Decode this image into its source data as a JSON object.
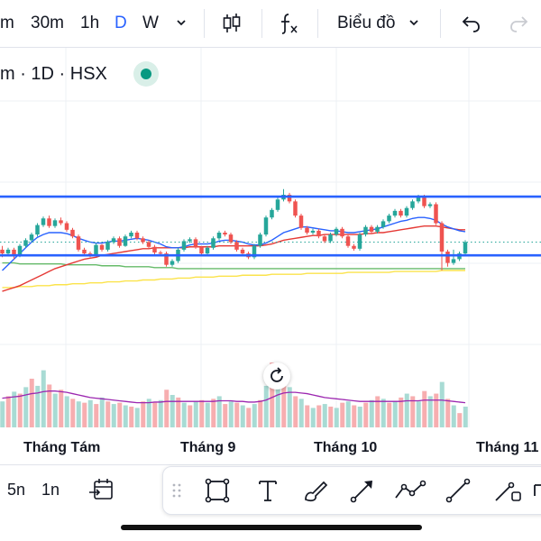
{
  "toolbar": {
    "timeframes": [
      {
        "label": "m",
        "active": false
      },
      {
        "label": "30m",
        "active": false
      },
      {
        "label": "1h",
        "active": false
      },
      {
        "label": "D",
        "active": true
      },
      {
        "label": "W",
        "active": false
      }
    ],
    "chart_type_label": "Biểu đồ"
  },
  "symbol": {
    "title": "m · 1D · HSX"
  },
  "chart_data": {
    "type": "candlestick",
    "xlabels": [
      "Tháng Tám",
      "Tháng 9",
      "Tháng 10",
      "Tháng 11"
    ],
    "colors": {
      "up": "#26a69a",
      "down": "#ef5350",
      "up_vol": "#a8dbd4",
      "down_vol": "#f7aeb0",
      "resistance": "#2962ff",
      "ma_blue": "#2962ff",
      "ma_red": "#e53935",
      "ma_green": "#66bb6a",
      "ma_yellow": "#fbe34b",
      "vol_ma": "#9c27b0",
      "last_price": "#26a69a"
    },
    "candles": [
      [
        62,
        58,
        66,
        54
      ],
      [
        58,
        62,
        64,
        56
      ],
      [
        62,
        56,
        64,
        52
      ],
      [
        56,
        66,
        68,
        54
      ],
      [
        66,
        72,
        74,
        64
      ],
      [
        72,
        78,
        80,
        70
      ],
      [
        78,
        88,
        90,
        76
      ],
      [
        88,
        95,
        97,
        86
      ],
      [
        95,
        87,
        98,
        85
      ],
      [
        87,
        93,
        95,
        85
      ],
      [
        93,
        90,
        96,
        88
      ],
      [
        90,
        83,
        92,
        81
      ],
      [
        83,
        76,
        85,
        74
      ],
      [
        76,
        62,
        78,
        60
      ],
      [
        62,
        58,
        64,
        56
      ],
      [
        58,
        56,
        60,
        54
      ],
      [
        56,
        67,
        69,
        55
      ],
      [
        67,
        62,
        68,
        60
      ],
      [
        62,
        70,
        72,
        60
      ],
      [
        70,
        74,
        76,
        68
      ],
      [
        74,
        66,
        76,
        64
      ],
      [
        66,
        76,
        78,
        65
      ],
      [
        76,
        80,
        82,
        74
      ],
      [
        80,
        74,
        82,
        72
      ],
      [
        74,
        70,
        76,
        68
      ],
      [
        70,
        65,
        72,
        63
      ],
      [
        65,
        59,
        67,
        57
      ],
      [
        59,
        58,
        61,
        56
      ],
      [
        58,
        46,
        60,
        44
      ],
      [
        46,
        50,
        52,
        44
      ],
      [
        50,
        62,
        64,
        48
      ],
      [
        62,
        71,
        73,
        60
      ],
      [
        71,
        73,
        75,
        69
      ],
      [
        73,
        65,
        75,
        63
      ],
      [
        65,
        58,
        66,
        56
      ],
      [
        58,
        64,
        66,
        56
      ],
      [
        64,
        74,
        76,
        62
      ],
      [
        74,
        80,
        82,
        72
      ],
      [
        80,
        78,
        82,
        76
      ],
      [
        78,
        70,
        80,
        68
      ],
      [
        70,
        62,
        72,
        60
      ],
      [
        62,
        58,
        64,
        56
      ],
      [
        58,
        54,
        60,
        52
      ],
      [
        54,
        66,
        68,
        52
      ],
      [
        66,
        78,
        80,
        64
      ],
      [
        78,
        96,
        98,
        76
      ],
      [
        96,
        104,
        106,
        94
      ],
      [
        104,
        115,
        118,
        102
      ],
      [
        115,
        120,
        126,
        113
      ],
      [
        120,
        113,
        122,
        111
      ],
      [
        113,
        98,
        115,
        96
      ],
      [
        98,
        85,
        100,
        83
      ],
      [
        85,
        80,
        87,
        78
      ],
      [
        80,
        82,
        84,
        78
      ],
      [
        82,
        76,
        84,
        74
      ],
      [
        76,
        71,
        78,
        69
      ],
      [
        71,
        78,
        80,
        69
      ],
      [
        78,
        84,
        86,
        76
      ],
      [
        84,
        76,
        86,
        74
      ],
      [
        76,
        66,
        78,
        64
      ],
      [
        66,
        63,
        68,
        61
      ],
      [
        63,
        78,
        80,
        61
      ],
      [
        78,
        86,
        88,
        76
      ],
      [
        86,
        81,
        88,
        79
      ],
      [
        81,
        86,
        88,
        79
      ],
      [
        86,
        92,
        94,
        84
      ],
      [
        92,
        98,
        100,
        90
      ],
      [
        98,
        103,
        105,
        96
      ],
      [
        103,
        98,
        105,
        96
      ],
      [
        98,
        106,
        108,
        96
      ],
      [
        106,
        113,
        115,
        104
      ],
      [
        113,
        118,
        120,
        111
      ],
      [
        118,
        108,
        120,
        106
      ],
      [
        108,
        110,
        112,
        106
      ],
      [
        110,
        90,
        112,
        88
      ],
      [
        90,
        60,
        92,
        40
      ],
      [
        60,
        48,
        62,
        44
      ],
      [
        48,
        52,
        62,
        46
      ],
      [
        52,
        58,
        60,
        50
      ],
      [
        58,
        70,
        72,
        56
      ]
    ],
    "volumes": [
      [
        40,
        false
      ],
      [
        48,
        true
      ],
      [
        55,
        false
      ],
      [
        52,
        true
      ],
      [
        62,
        false
      ],
      [
        75,
        true
      ],
      [
        64,
        false
      ],
      [
        88,
        false
      ],
      [
        66,
        true
      ],
      [
        52,
        false
      ],
      [
        58,
        true
      ],
      [
        48,
        false
      ],
      [
        44,
        true
      ],
      [
        40,
        false
      ],
      [
        38,
        true
      ],
      [
        42,
        false
      ],
      [
        36,
        true
      ],
      [
        46,
        false
      ],
      [
        40,
        true
      ],
      [
        36,
        false
      ],
      [
        38,
        true
      ],
      [
        34,
        false
      ],
      [
        32,
        true
      ],
      [
        30,
        false
      ],
      [
        40,
        true
      ],
      [
        44,
        false
      ],
      [
        38,
        true
      ],
      [
        42,
        false
      ],
      [
        58,
        true
      ],
      [
        50,
        false
      ],
      [
        46,
        true
      ],
      [
        38,
        false
      ],
      [
        34,
        true
      ],
      [
        40,
        false
      ],
      [
        42,
        true
      ],
      [
        38,
        false
      ],
      [
        44,
        true
      ],
      [
        48,
        false
      ],
      [
        36,
        true
      ],
      [
        40,
        false
      ],
      [
        38,
        true
      ],
      [
        34,
        false
      ],
      [
        30,
        true
      ],
      [
        36,
        false
      ],
      [
        42,
        true
      ],
      [
        64,
        false
      ],
      [
        100,
        true
      ],
      [
        94,
        false
      ],
      [
        86,
        true
      ],
      [
        62,
        false
      ],
      [
        48,
        true
      ],
      [
        44,
        false
      ],
      [
        34,
        true
      ],
      [
        30,
        false
      ],
      [
        34,
        true
      ],
      [
        36,
        false
      ],
      [
        32,
        true
      ],
      [
        30,
        false
      ],
      [
        38,
        true
      ],
      [
        40,
        false
      ],
      [
        34,
        true
      ],
      [
        32,
        false
      ],
      [
        38,
        true
      ],
      [
        42,
        false
      ],
      [
        48,
        true
      ],
      [
        44,
        false
      ],
      [
        38,
        true
      ],
      [
        40,
        false
      ],
      [
        46,
        true
      ],
      [
        52,
        false
      ],
      [
        48,
        true
      ],
      [
        40,
        false
      ],
      [
        56,
        true
      ],
      [
        48,
        false
      ],
      [
        52,
        true
      ],
      [
        70,
        false
      ],
      [
        44,
        true
      ],
      [
        34,
        false
      ],
      [
        22,
        true
      ],
      [
        32,
        false
      ]
    ],
    "ma_blue": [
      40,
      46,
      52,
      58,
      64,
      70,
      75,
      78,
      80,
      80,
      80,
      79,
      77,
      74,
      72,
      70,
      69,
      69,
      70,
      71,
      71,
      72,
      73,
      74,
      73,
      72,
      70,
      68,
      65,
      64,
      64,
      65,
      67,
      68,
      68,
      68,
      69,
      71,
      72,
      72,
      71,
      70,
      68,
      67,
      67,
      69,
      72,
      76,
      80,
      82,
      84,
      86,
      86,
      85,
      84,
      83,
      82,
      82,
      81,
      80,
      80,
      81,
      82,
      83,
      84,
      86,
      88,
      90,
      92,
      93,
      95,
      96,
      96,
      95,
      93,
      89,
      86,
      84,
      82,
      81
    ],
    "ma_red": [
      18,
      20,
      22,
      24,
      27,
      30,
      33,
      36,
      39,
      42,
      44,
      46,
      48,
      50,
      52,
      53,
      54,
      56,
      57,
      58,
      59,
      60,
      61,
      62,
      63,
      63,
      64,
      64,
      64,
      64,
      64,
      64,
      65,
      65,
      65,
      65,
      65,
      66,
      66,
      66,
      66,
      66,
      66,
      66,
      66,
      67,
      68,
      70,
      72,
      73,
      74,
      75,
      76,
      77,
      77,
      78,
      78,
      78,
      78,
      78,
      78,
      78,
      79,
      79,
      80,
      80,
      81,
      82,
      83,
      84,
      85,
      86,
      87,
      87,
      87,
      86,
      85,
      84,
      83,
      83
    ],
    "ma_green": [
      48,
      48,
      48,
      47,
      47,
      47,
      47,
      47,
      47,
      47,
      47,
      46,
      46,
      46,
      46,
      46,
      46,
      45,
      45,
      45,
      45,
      44,
      44,
      44,
      44,
      44,
      43,
      43,
      43,
      43,
      42,
      42,
      42,
      42,
      42,
      42,
      42,
      42,
      42,
      42,
      42,
      42,
      42,
      42,
      42,
      42,
      42,
      42,
      42,
      42,
      42,
      42,
      42,
      42,
      42,
      42,
      42,
      42,
      42,
      42,
      42,
      42,
      42,
      42,
      42,
      42,
      42,
      42,
      42,
      42,
      42,
      42,
      42,
      42,
      42,
      42,
      42,
      42,
      42,
      42
    ],
    "ma_yellow": [
      22,
      22,
      22,
      23,
      23,
      23,
      24,
      24,
      24,
      25,
      25,
      25,
      26,
      26,
      26,
      27,
      27,
      27,
      28,
      28,
      28,
      29,
      29,
      29,
      30,
      30,
      30,
      31,
      31,
      31,
      32,
      32,
      32,
      33,
      33,
      33,
      33,
      34,
      34,
      34,
      34,
      35,
      35,
      35,
      35,
      35,
      36,
      36,
      36,
      36,
      36,
      36,
      37,
      37,
      37,
      37,
      37,
      37,
      37,
      38,
      38,
      38,
      38,
      38,
      38,
      38,
      38,
      39,
      39,
      39,
      39,
      39,
      39,
      39,
      39,
      40,
      40,
      40,
      40,
      40
    ],
    "vol_ma": [
      45,
      46,
      47,
      48,
      50,
      52,
      53,
      55,
      56,
      56,
      55,
      54,
      52,
      50,
      48,
      46,
      45,
      44,
      43,
      42,
      41,
      40,
      39,
      38,
      38,
      38,
      39,
      39,
      40,
      40,
      40,
      40,
      40,
      40,
      40,
      40,
      40,
      41,
      41,
      41,
      40,
      40,
      39,
      39,
      40,
      42,
      46,
      50,
      53,
      54,
      54,
      53,
      52,
      50,
      48,
      46,
      45,
      44,
      43,
      42,
      41,
      40,
      40,
      40,
      40,
      40,
      40,
      40,
      40,
      41,
      41,
      41,
      42,
      42,
      42,
      42,
      41,
      40,
      39,
      38
    ],
    "resistance_level": 118,
    "support_level": 56,
    "last_price_level": 70
  },
  "xaxis": {
    "labels": [
      "Tháng Tám",
      "Tháng 9",
      "Tháng 10",
      "Tháng 11"
    ]
  },
  "bottom": {
    "ranges": [
      "5n",
      "1n"
    ]
  }
}
